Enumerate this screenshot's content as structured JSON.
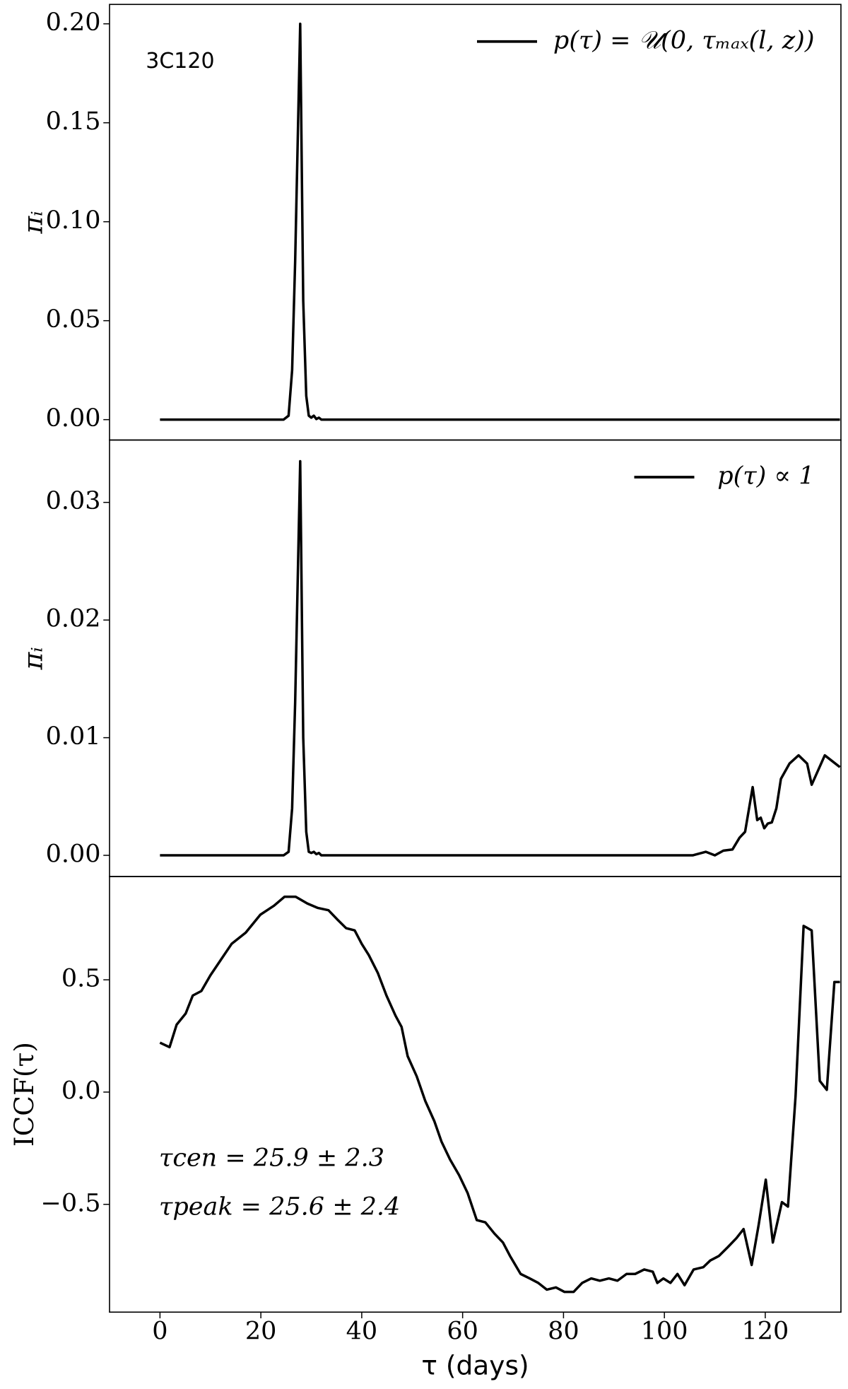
{
  "chart_data": [
    {
      "type": "line",
      "annotation": "3C120",
      "ylabel": "πᵢ",
      "legend": "upper right",
      "xlim": [
        -10,
        135
      ],
      "ylim": [
        -0.0103,
        0.2098
      ],
      "yticks": [
        {
          "value": 0,
          "label": "0.00"
        },
        {
          "value": 0.05,
          "label": "0.05"
        },
        {
          "value": 0.1,
          "label": "0.10"
        },
        {
          "value": 0.15,
          "label": "0.15"
        },
        {
          "value": 0.2,
          "label": "0.20"
        }
      ],
      "series": [
        {
          "name": "p(τ) = 𝒰(0, τₘₐₓ(l, z))",
          "color": "#000000",
          "x": [
            0,
            24.5,
            25.5,
            26.2,
            26.8,
            27.8,
            28.4,
            29,
            29.5,
            30,
            30.5,
            31,
            31.5,
            32,
            134.8
          ],
          "values": [
            0,
            0,
            0.002,
            0.025,
            0.08,
            0.2,
            0.06,
            0.012,
            0.002,
            0.001,
            0.002,
            0.0003,
            0.001,
            0,
            0
          ]
        }
      ]
    },
    {
      "type": "line",
      "ylabel": "πᵢ",
      "legend": "upper right",
      "xlim": [
        -10,
        135
      ],
      "ylim": [
        -0.0018,
        0.0353
      ],
      "yticks": [
        {
          "value": 0,
          "label": "0.00"
        },
        {
          "value": 0.01,
          "label": "0.01"
        },
        {
          "value": 0.02,
          "label": "0.02"
        },
        {
          "value": 0.03,
          "label": "0.03"
        }
      ],
      "series": [
        {
          "name": "p(τ) ∝ 1",
          "color": "#000000",
          "x": [
            0,
            24.5,
            25.5,
            26.2,
            26.8,
            27.8,
            28.4,
            29,
            29.5,
            30,
            30.5,
            31,
            31.5,
            32,
            103,
            105.6,
            108.2,
            110,
            111.7,
            113.5,
            114.9,
            116,
            117.5,
            118.4,
            119.1,
            119.8,
            120.5,
            121.3,
            122.2,
            123.1,
            124.8,
            126.6,
            128.3,
            129.2,
            131.8,
            134.8
          ],
          "values": [
            0,
            0,
            0.0003,
            0.004,
            0.013,
            0.0335,
            0.01,
            0.002,
            0.0003,
            0.0002,
            0.0003,
            0.0001,
            0.0002,
            0,
            0,
            0,
            0.0003,
            0,
            0.0004,
            0.0005,
            0.0015,
            0.002,
            0.0058,
            0.003,
            0.0032,
            0.0023,
            0.0027,
            0.0028,
            0.004,
            0.0065,
            0.0078,
            0.0085,
            0.0078,
            0.006,
            0.0085,
            0.0075
          ]
        }
      ]
    },
    {
      "type": "line",
      "ylabel": "ICCF(τ)",
      "xlabel": "τ (days)",
      "annotations": [
        "τcen = 25.9 ± 2.3",
        "τpeak = 25.6 ± 2.4"
      ],
      "xlim": [
        -10,
        135
      ],
      "ylim": [
        -0.98,
        0.96
      ],
      "xticks": [
        0,
        20,
        40,
        60,
        80,
        100,
        120
      ],
      "yticks": [
        {
          "value": -0.5,
          "label": "−0.5"
        },
        {
          "value": 0,
          "label": "0.0"
        },
        0.5
      ],
      "series": [
        {
          "color": "#000000",
          "x": [
            0,
            1.9,
            3.3,
            5.1,
            6.5,
            8.2,
            10,
            12.1,
            14.2,
            17,
            19.9,
            22.6,
            24.7,
            26.9,
            29.2,
            31.3,
            33.4,
            35.1,
            36.9,
            38.6,
            40,
            41.4,
            43.2,
            44.9,
            46.7,
            47.9,
            49.1,
            50.9,
            52.6,
            54.4,
            55.8,
            57.5,
            59.3,
            61,
            62.8,
            64.5,
            66.3,
            68,
            69.4,
            71.5,
            73.3,
            75,
            76.7,
            78.5,
            80.2,
            82,
            83.7,
            85.5,
            87.2,
            89,
            90.7,
            92.5,
            94.2,
            96,
            97.7,
            98.6,
            99.8,
            101.2,
            102.6,
            104,
            105.8,
            107.7,
            109.1,
            110.8,
            112.6,
            114.3,
            115.7,
            117.3,
            118.7,
            120.1,
            121.5,
            123.3,
            124.5,
            126,
            127.6,
            129.2,
            130.8,
            132.2,
            133.7,
            134.8
          ],
          "values": [
            0.22,
            0.2,
            0.3,
            0.35,
            0.43,
            0.45,
            0.52,
            0.59,
            0.66,
            0.71,
            0.79,
            0.83,
            0.87,
            0.87,
            0.84,
            0.82,
            0.81,
            0.77,
            0.73,
            0.72,
            0.66,
            0.61,
            0.53,
            0.43,
            0.34,
            0.29,
            0.16,
            0.07,
            -0.04,
            -0.13,
            -0.22,
            -0.3,
            -0.37,
            -0.45,
            -0.57,
            -0.58,
            -0.63,
            -0.67,
            -0.73,
            -0.81,
            -0.83,
            -0.85,
            -0.88,
            -0.87,
            -0.89,
            -0.89,
            -0.85,
            -0.83,
            -0.84,
            -0.83,
            -0.84,
            -0.81,
            -0.81,
            -0.79,
            -0.8,
            -0.85,
            -0.83,
            -0.85,
            -0.81,
            -0.86,
            -0.79,
            -0.78,
            -0.75,
            -0.73,
            -0.69,
            -0.65,
            -0.61,
            -0.77,
            -0.59,
            -0.39,
            -0.67,
            -0.49,
            -0.51,
            -0.02,
            0.74,
            0.72,
            0.05,
            0.01,
            0.49,
            0.49
          ]
        }
      ]
    }
  ]
}
